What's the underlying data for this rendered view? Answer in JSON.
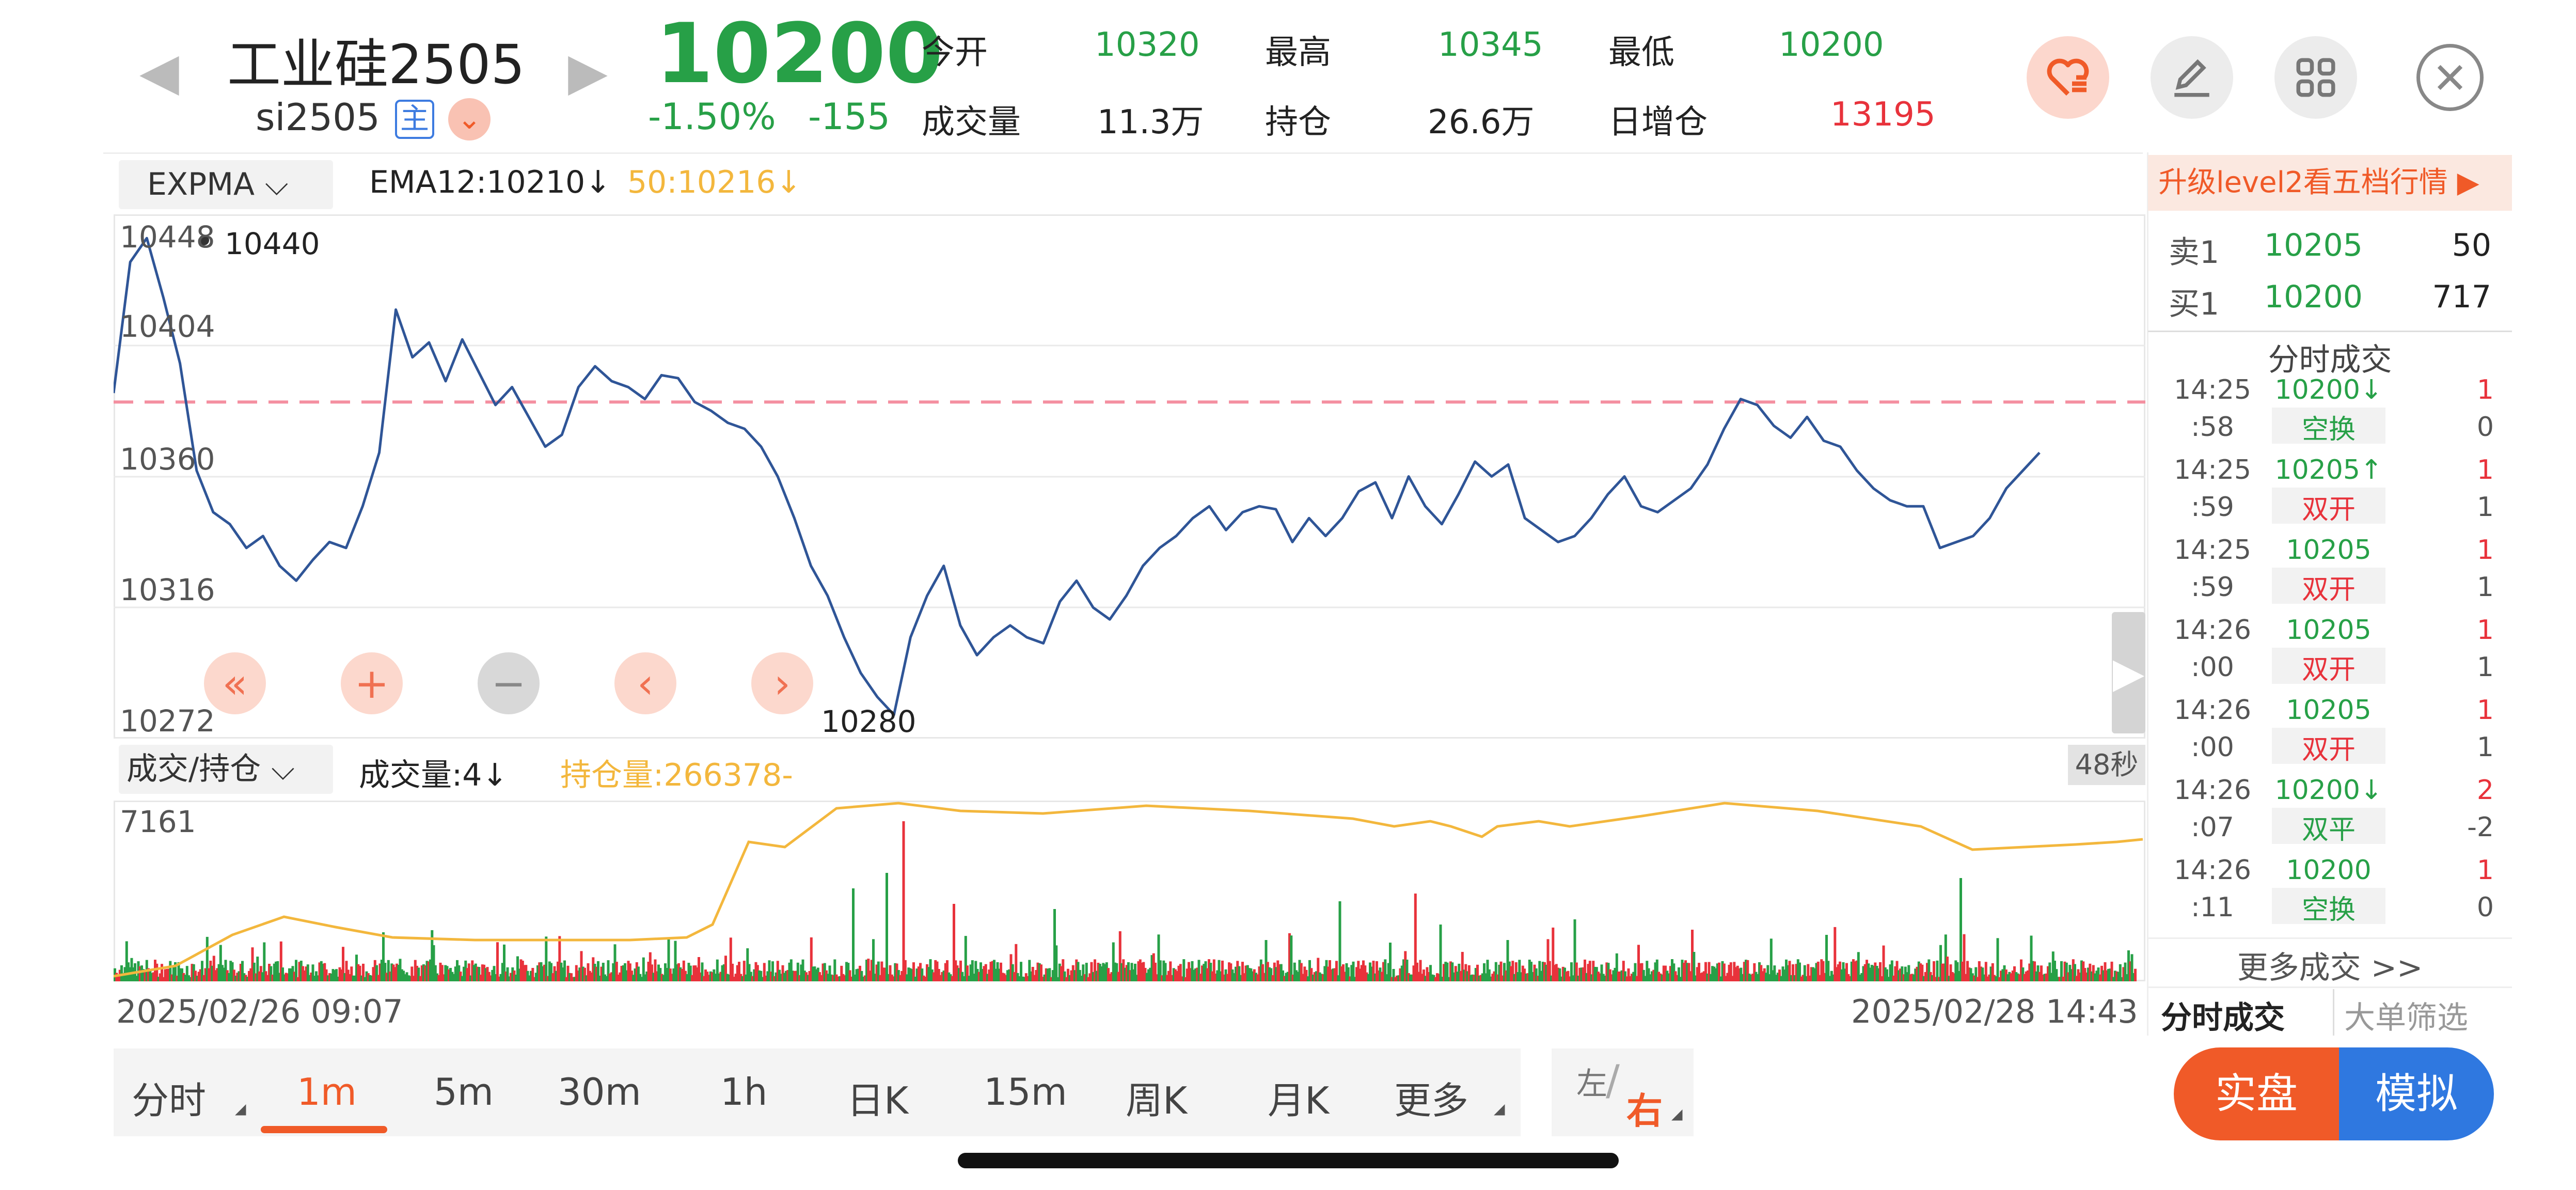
{
  "header": {
    "symbol_name": "工业硅2505",
    "symbol_code": "si2505",
    "main_badge": "主",
    "price": "10200",
    "change_pct": "-1.50%",
    "change": "-155",
    "stats": [
      {
        "label": "今开",
        "value": "10320"
      },
      {
        "label": "最高",
        "value": "10345"
      },
      {
        "label": "最低",
        "value": "10200"
      },
      {
        "label": "成交量",
        "value": "11.3万"
      },
      {
        "label": "持仓",
        "value": "26.6万"
      },
      {
        "label": "日增仓",
        "value": "13195"
      }
    ]
  },
  "indicator": {
    "selector": "EXPMA",
    "ema12": "EMA12:10210↓",
    "ema50": "50:10216↓"
  },
  "main_chart": {
    "y_ticks": [
      "10448",
      "10404",
      "10360",
      "10316",
      "10272"
    ],
    "max_label": "10440",
    "min_label": "10280",
    "reference_line": 10385,
    "y_range": [
      10272,
      10448
    ]
  },
  "volume_panel": {
    "selector": "成交/持仓",
    "volume": "成交量:4↓",
    "open_interest": "持仓量:266378-",
    "y_max": "7161",
    "timer": "48秒"
  },
  "dates": {
    "start": "2025/02/26 09:07",
    "end": "2025/02/28 14:43"
  },
  "tabs": [
    "分时",
    "1m",
    "5m",
    "30m",
    "1h",
    "日K",
    "15m",
    "周K",
    "月K",
    "更多"
  ],
  "active_tab": "1m",
  "side_toggle": {
    "left": "左",
    "right": "右"
  },
  "right_panel": {
    "promo": "升级level2看五档行情 ▶",
    "order_book": [
      {
        "label": "卖1",
        "price": "10205",
        "volume": "50"
      },
      {
        "label": "买1",
        "price": "10200",
        "volume": "717"
      }
    ],
    "trades_title": "分时成交",
    "trades": [
      {
        "hm": "14:25",
        "sec": ":58",
        "price": "10200↓",
        "vol": "1",
        "type": "空换",
        "delta": "0",
        "pc": "g",
        "tc": "g"
      },
      {
        "hm": "14:25",
        "sec": ":59",
        "price": "10205↑",
        "vol": "1",
        "type": "双开",
        "delta": "1",
        "pc": "g",
        "tc": "r"
      },
      {
        "hm": "14:25",
        "sec": ":59",
        "price": "10205",
        "vol": "1",
        "type": "双开",
        "delta": "1",
        "pc": "g",
        "tc": "r"
      },
      {
        "hm": "14:26",
        "sec": ":00",
        "price": "10205",
        "vol": "1",
        "type": "双开",
        "delta": "1",
        "pc": "g",
        "tc": "r"
      },
      {
        "hm": "14:26",
        "sec": ":00",
        "price": "10205",
        "vol": "1",
        "type": "双开",
        "delta": "1",
        "pc": "g",
        "tc": "r"
      },
      {
        "hm": "14:26",
        "sec": ":07",
        "price": "10200↓",
        "vol": "2",
        "type": "双平",
        "delta": "-2",
        "pc": "g",
        "tc": "g"
      },
      {
        "hm": "14:26",
        "sec": ":11",
        "price": "10200",
        "vol": "1",
        "type": "空换",
        "delta": "0",
        "pc": "g",
        "tc": "g"
      }
    ],
    "more_trades": "更多成交 >>",
    "bottom_tabs": [
      "分时成交",
      "大单筛选"
    ]
  },
  "buttons": {
    "real": "实盘",
    "sim": "模拟"
  },
  "colors": {
    "up": "#e8323b",
    "down": "#27a047",
    "price_line": "#2f5597",
    "oi_line": "#f3b73d",
    "accent": "#f05a28",
    "blue": "#2f78e0"
  },
  "chart_data": {
    "type": "line",
    "y_range": [
      10272,
      10448
    ],
    "price_series": [
      10388,
      10432,
      10440,
      10420,
      10398,
      10362,
      10348,
      10344,
      10336,
      10340,
      10330,
      10325,
      10332,
      10338,
      10336,
      10350,
      10368,
      10416,
      10400,
      10405,
      10392,
      10406,
      10395,
      10384,
      10390,
      10380,
      10370,
      10374,
      10390,
      10397,
      10392,
      10390,
      10386,
      10394,
      10393,
      10385,
      10382,
      10378,
      10376,
      10370,
      10360,
      10346,
      10330,
      10320,
      10306,
      10294,
      10286,
      10280,
      10306,
      10320,
      10330,
      10310,
      10300,
      10306,
      10310,
      10306,
      10304,
      10318,
      10325,
      10316,
      10312,
      10320,
      10330,
      10336,
      10340,
      10346,
      10350,
      10342,
      10348,
      10350,
      10349,
      10338,
      10346,
      10340,
      10346,
      10355,
      10358,
      10346,
      10360,
      10350,
      10344,
      10354,
      10365,
      10360,
      10364,
      10346,
      10342,
      10338,
      10340,
      10346,
      10354,
      10360,
      10350,
      10348,
      10352,
      10356,
      10364,
      10376,
      10386,
      10384,
      10377,
      10373,
      10380,
      10372,
      10370,
      10362,
      10356,
      10352,
      10350,
      10350,
      10336,
      10338,
      10340,
      10346,
      10356,
      10362,
      10368
    ]
  }
}
